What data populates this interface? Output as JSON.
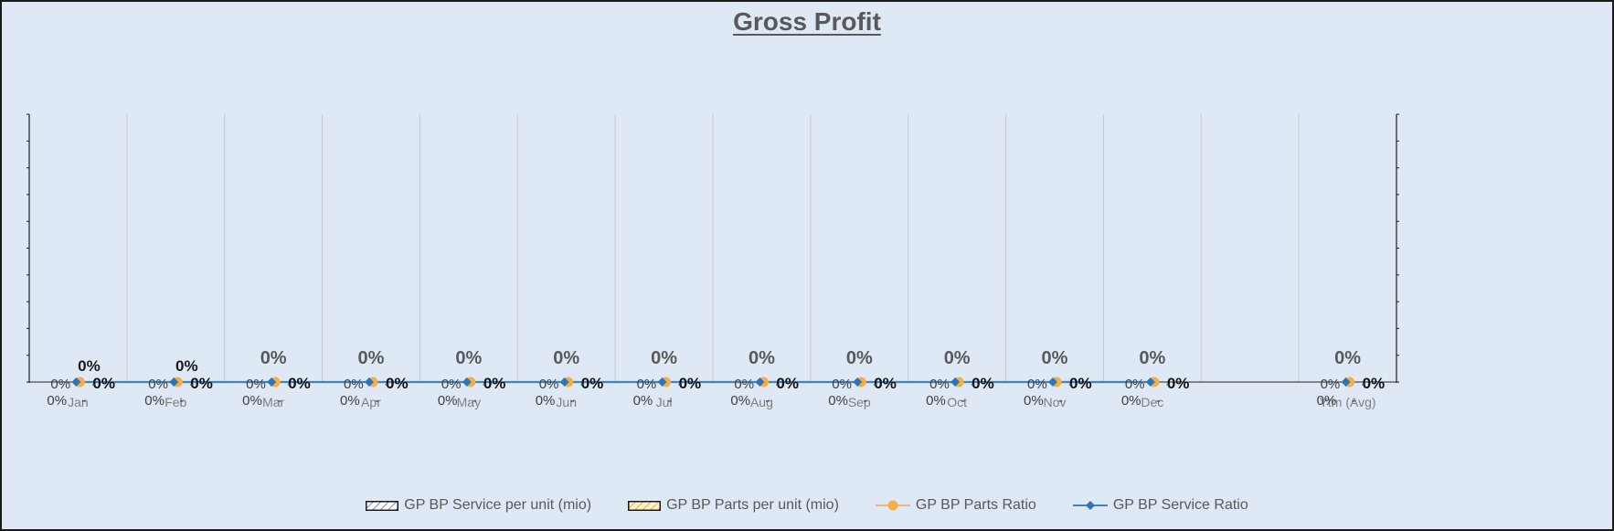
{
  "chart_data": {
    "type": "bar",
    "title": "Gross Profit",
    "categories": [
      "Jan",
      "Feb",
      "Mar",
      "Apr",
      "May",
      "Jun",
      "Jul",
      "Aug",
      "Sep",
      "Oct",
      "Nov",
      "Dec",
      "",
      "Ytm (Avg)"
    ],
    "series": [
      {
        "name": "GP BP Service per unit  (mio)",
        "kind": "bar",
        "pattern": "diagonal-blue",
        "values": [
          0,
          0,
          0,
          0,
          0,
          0,
          0,
          0,
          0,
          0,
          0,
          0,
          null,
          0
        ],
        "labels": [
          "-",
          "-",
          "-",
          "-",
          "-",
          "-",
          "-",
          "-",
          "-",
          "-",
          "-",
          "-",
          "",
          "-"
        ]
      },
      {
        "name": "GP BP Parts per unit  (mio)",
        "kind": "bar",
        "pattern": "diagonal-orange",
        "values": [
          0,
          0,
          0,
          0,
          0,
          0,
          0,
          0,
          0,
          0,
          0,
          0,
          null,
          0
        ],
        "labels": [
          "-",
          "-",
          "-",
          "-",
          "-",
          "-",
          "-",
          "-",
          "-",
          "-",
          "-",
          "-",
          "",
          "-"
        ]
      },
      {
        "name": "GP BP Parts Ratio",
        "kind": "line",
        "color": "#f4b183",
        "marker": "circle",
        "marker_color": "#f5b041",
        "values": [
          0,
          0,
          0,
          0,
          0,
          0,
          0,
          0,
          0,
          0,
          0,
          0,
          null,
          0
        ],
        "labels": [
          "0%",
          "0%",
          "0%",
          "0%",
          "0%",
          "0%",
          "0%",
          "0%",
          "0%",
          "0%",
          "0%",
          "0%",
          "",
          "0%"
        ]
      },
      {
        "name": "GP BP Service Ratio",
        "kind": "line",
        "color": "#3d85c6",
        "marker": "diamond",
        "marker_color": "#2e75b6",
        "values": [
          0,
          0,
          0,
          0,
          0,
          0,
          0,
          0,
          0,
          0,
          0,
          0,
          null,
          0
        ],
        "labels": [
          "0%",
          "0%",
          "0%",
          "0%",
          "0%",
          "0%",
          "0%",
          "0%",
          "0%",
          "0%",
          "0%",
          "0%",
          "",
          "0%"
        ]
      }
    ],
    "ratio_labels_above": [
      "0%",
      "0%",
      "0%",
      "0%",
      "0%",
      "0%",
      "0%",
      "0%",
      "0%",
      "0%",
      "0%",
      "0%",
      "",
      "0%"
    ],
    "grid": true,
    "legend_position": "bottom",
    "colors": {
      "background": "#dee9f5",
      "frame": "#1a1a1a",
      "text": "#595959",
      "gridline": "#c8c8c8"
    }
  }
}
